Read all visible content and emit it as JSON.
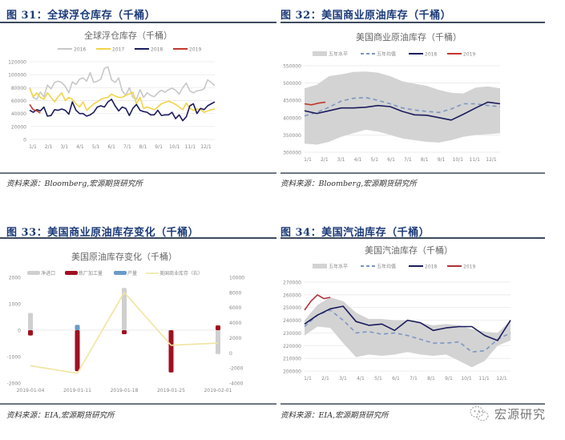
{
  "panels": [
    {
      "fig_label": "图 31：全球浮仓库存（千桶）",
      "source": "资料来源：Bloomberg,宏源期货研究所"
    },
    {
      "fig_label": "图 32：美国商业原油库存（千桶）",
      "source": "资料来源：Bloomberg,宏源期货研究所"
    },
    {
      "fig_label": "图 33：美国商业原油库存变化（千桶）",
      "source": "资料来源：EIA,宏源期货研究所"
    },
    {
      "fig_label": "图 34：美国汽油库存（千桶）",
      "source": "资料来源：EIA,宏源期货研究所"
    }
  ],
  "watermark": {
    "text": "宏源研究",
    "icon": "wechat-logo-icon"
  },
  "chart_data": [
    {
      "id": "fig31",
      "type": "line",
      "title": "全球浮仓库存（千桶）",
      "xlabel": "",
      "ylabel": "",
      "categories": [
        "1/1",
        "2/1",
        "3/1",
        "4/1",
        "5/1",
        "6/1",
        "7/1",
        "8/1",
        "9/1",
        "10/1",
        "11/1",
        "12/1"
      ],
      "ylim": [
        0,
        120000
      ],
      "yticks": [
        0,
        20000,
        40000,
        60000,
        80000,
        100000,
        120000
      ],
      "grid": true,
      "legend_position": "top",
      "series": [
        {
          "name": "2016",
          "color": "#c8c8c8",
          "values": [
            80000,
            65000,
            62000,
            73000,
            66000,
            84000,
            78000,
            88000,
            90000,
            88000,
            82000,
            72000,
            89000,
            85000,
            93000,
            95000,
            90000,
            103000,
            88000,
            90000,
            93000,
            110000,
            112000,
            92000,
            88000,
            95000,
            75000,
            68000,
            80000,
            65000,
            62000,
            77000,
            65000,
            72000,
            68000,
            66000,
            72000,
            76000,
            73000,
            77000,
            79000,
            76000,
            70000,
            80000,
            87000,
            75000,
            72000,
            75000,
            76000,
            78000,
            92000,
            88000,
            83000
          ]
        },
        {
          "name": "2017",
          "color": "#f2d44a",
          "values": [
            79000,
            66000,
            72000,
            65000,
            62000,
            72000,
            65000,
            58000,
            66000,
            72000,
            60000,
            65000,
            62000,
            55000,
            50000,
            58000,
            45000,
            50000,
            55000,
            58000,
            62000,
            64000,
            65000,
            70000,
            67000,
            65000,
            65000,
            68000,
            70000,
            73000,
            55000,
            65000,
            48000,
            50000,
            48000,
            46000,
            50000,
            55000,
            57000,
            59000,
            57000,
            54000,
            50000,
            46000,
            56000,
            48000,
            45000,
            47000,
            46000,
            42000,
            44000,
            46000,
            47000
          ]
        },
        {
          "name": "2018",
          "color": "#1b1c5c",
          "values": [
            45000,
            42000,
            46000,
            44000,
            50000,
            36000,
            37000,
            46000,
            45000,
            47000,
            45000,
            39000,
            58000,
            45000,
            40000,
            40000,
            36000,
            38000,
            42000,
            50000,
            52000,
            50000,
            58000,
            62000,
            52000,
            44000,
            50000,
            48000,
            37000,
            48000,
            54000,
            45000,
            43000,
            42000,
            38000,
            38000,
            45000,
            37000,
            38000,
            38000,
            42000,
            32000,
            38000,
            29000,
            35000,
            52000,
            55000,
            40000,
            48000,
            46000,
            52000,
            55000,
            58000
          ]
        },
        {
          "name": "2019",
          "color": "#c0392b",
          "values": [
            54000,
            46000,
            44000,
            41000
          ]
        }
      ]
    },
    {
      "id": "fig32",
      "type": "area",
      "title": "美国商业原油库存（千桶）",
      "categories": [
        "1/1",
        "2/1",
        "3/1",
        "4/1",
        "5/1",
        "6/1",
        "7/1",
        "8/1",
        "9/1",
        "10/1",
        "11/1",
        "12/1"
      ],
      "ylim": [
        300000,
        550000
      ],
      "yticks": [
        300000,
        350000,
        400000,
        450000,
        500000,
        550000
      ],
      "grid": true,
      "legend_position": "top",
      "series": [
        {
          "name": "五年水平",
          "kind": "band",
          "color": "#d3d3d3",
          "upper": [
            485000,
            495000,
            520000,
            525000,
            532000,
            533000,
            530000,
            520000,
            505000,
            498000,
            492000,
            480000,
            472000,
            470000,
            487000,
            490000,
            485000
          ],
          "lower": [
            325000,
            322000,
            330000,
            345000,
            355000,
            365000,
            360000,
            350000,
            340000,
            335000,
            330000,
            328000,
            335000,
            345000,
            350000,
            352000,
            355000
          ]
        },
        {
          "name": "五年均值",
          "kind": "dashed",
          "color": "#7b96c3",
          "values": [
            405000,
            415000,
            430000,
            448000,
            456000,
            458000,
            450000,
            440000,
            428000,
            422000,
            418000,
            415000,
            425000,
            440000,
            440000,
            435000,
            432000
          ]
        },
        {
          "name": "2018",
          "color": "#1b1c5c",
          "values": [
            420000,
            412000,
            420000,
            428000,
            428000,
            430000,
            435000,
            432000,
            418000,
            408000,
            407000,
            400000,
            393000,
            410000,
            428000,
            445000,
            440000
          ]
        },
        {
          "name": "2019",
          "color": "#c0392b",
          "values": [
            440000,
            437000,
            442000,
            445000
          ]
        }
      ]
    },
    {
      "id": "fig33",
      "type": "bar",
      "title": "美国原油库存变化（千桶）",
      "categories": [
        "2019-01-04",
        "2019-01-11",
        "2019-01-18",
        "2019-01-25",
        "2019-02-01"
      ],
      "ylim_left": [
        -2000,
        2000
      ],
      "yticks_left": [
        -2000,
        -1000,
        0,
        1000,
        2000
      ],
      "ylim_right": [
        -4000,
        10000
      ],
      "yticks_right": [
        -4000,
        -2000,
        0,
        2000,
        4000,
        6000,
        8000,
        10000
      ],
      "stacked": true,
      "legend_position": "top",
      "series": [
        {
          "name": "净进口",
          "color": "#cfcfcf",
          "axis": "left",
          "values": [
            650,
            -1200,
            1600,
            -950,
            -900
          ]
        },
        {
          "name": "炼厂加工量",
          "color": "#a01020",
          "axis": "left",
          "values": [
            -200,
            -1550,
            -150,
            -1600,
            180
          ]
        },
        {
          "name": "产量",
          "color": "#6a9bc9",
          "axis": "left",
          "values": [
            0,
            200,
            0,
            0,
            0
          ]
        },
        {
          "name": "美国商业库存（右）",
          "kind": "line",
          "color": "#f0e4a0",
          "axis": "right",
          "values": [
            -1700,
            -2700,
            8000,
            1000,
            1300
          ]
        }
      ]
    },
    {
      "id": "fig34",
      "type": "area",
      "title": "美国汽油库存（千桶）",
      "categories": [
        "1/1",
        "2/1",
        "3/1",
        "4/1",
        "5/1",
        "6/1",
        "7/1",
        "8/1",
        "9/1",
        "10/1",
        "11/1",
        "12/1"
      ],
      "ylim": [
        200000,
        270000
      ],
      "yticks": [
        200000,
        210000,
        220000,
        230000,
        240000,
        250000,
        260000,
        270000
      ],
      "grid": true,
      "legend_position": "top",
      "series": [
        {
          "name": "五年水平",
          "kind": "band",
          "color": "#d3d3d3",
          "upper": [
            240000,
            252000,
            258000,
            255000,
            246000,
            241000,
            241000,
            240000,
            240000,
            238000,
            236000,
            237000,
            236000,
            233000,
            231000,
            230000,
            240000
          ],
          "lower": [
            228000,
            235000,
            234000,
            222000,
            211000,
            213000,
            212000,
            213000,
            215000,
            213000,
            212000,
            213000,
            208000,
            203000,
            208000,
            220000,
            224000
          ]
        },
        {
          "name": "五年均值",
          "kind": "dashed",
          "color": "#7b96c3",
          "values": [
            235000,
            244000,
            248000,
            240000,
            230000,
            231000,
            229000,
            230000,
            228000,
            225000,
            222000,
            222000,
            223000,
            215000,
            216000,
            225000,
            230000
          ]
        },
        {
          "name": "2018",
          "color": "#1b1c5c",
          "values": [
            237000,
            244000,
            249000,
            251000,
            239000,
            236000,
            237000,
            232000,
            240000,
            238000,
            232000,
            234000,
            235000,
            235000,
            228000,
            224000,
            240000
          ]
        },
        {
          "name": "2019",
          "color": "#b0303a",
          "values": [
            248000,
            255000,
            260000,
            257000,
            258000
          ]
        }
      ]
    }
  ]
}
